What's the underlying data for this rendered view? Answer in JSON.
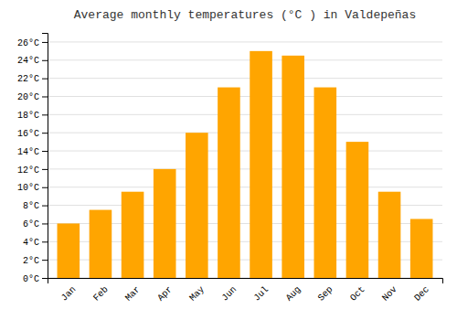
{
  "chart_data": {
    "type": "bar",
    "title": "Average monthly temperatures (°C ) in Valdepeñas",
    "categories": [
      "Jan",
      "Feb",
      "Mar",
      "Apr",
      "May",
      "Jun",
      "Jul",
      "Aug",
      "Sep",
      "Oct",
      "Nov",
      "Dec"
    ],
    "values": [
      6.0,
      7.5,
      9.5,
      12.0,
      16.0,
      21.0,
      25.0,
      24.5,
      21.0,
      15.0,
      9.5,
      6.5
    ],
    "color": "#FFA500",
    "ylim": [
      0,
      27
    ],
    "yticks": [
      {
        "value": 0,
        "label": "0°C"
      },
      {
        "value": 2,
        "label": "2°C"
      },
      {
        "value": 4,
        "label": "4°C"
      },
      {
        "value": 6,
        "label": "6°C"
      },
      {
        "value": 8,
        "label": "8°C"
      },
      {
        "value": 10,
        "label": "10°C"
      },
      {
        "value": 12,
        "label": "12°C"
      },
      {
        "value": 14,
        "label": "14°C"
      },
      {
        "value": 16,
        "label": "16°C"
      },
      {
        "value": 18,
        "label": "18°C"
      },
      {
        "value": 20,
        "label": "20°C"
      },
      {
        "value": 22,
        "label": "22°C"
      },
      {
        "value": 24,
        "label": "24°C"
      },
      {
        "value": 26,
        "label": "26°C"
      }
    ],
    "grid": true
  }
}
